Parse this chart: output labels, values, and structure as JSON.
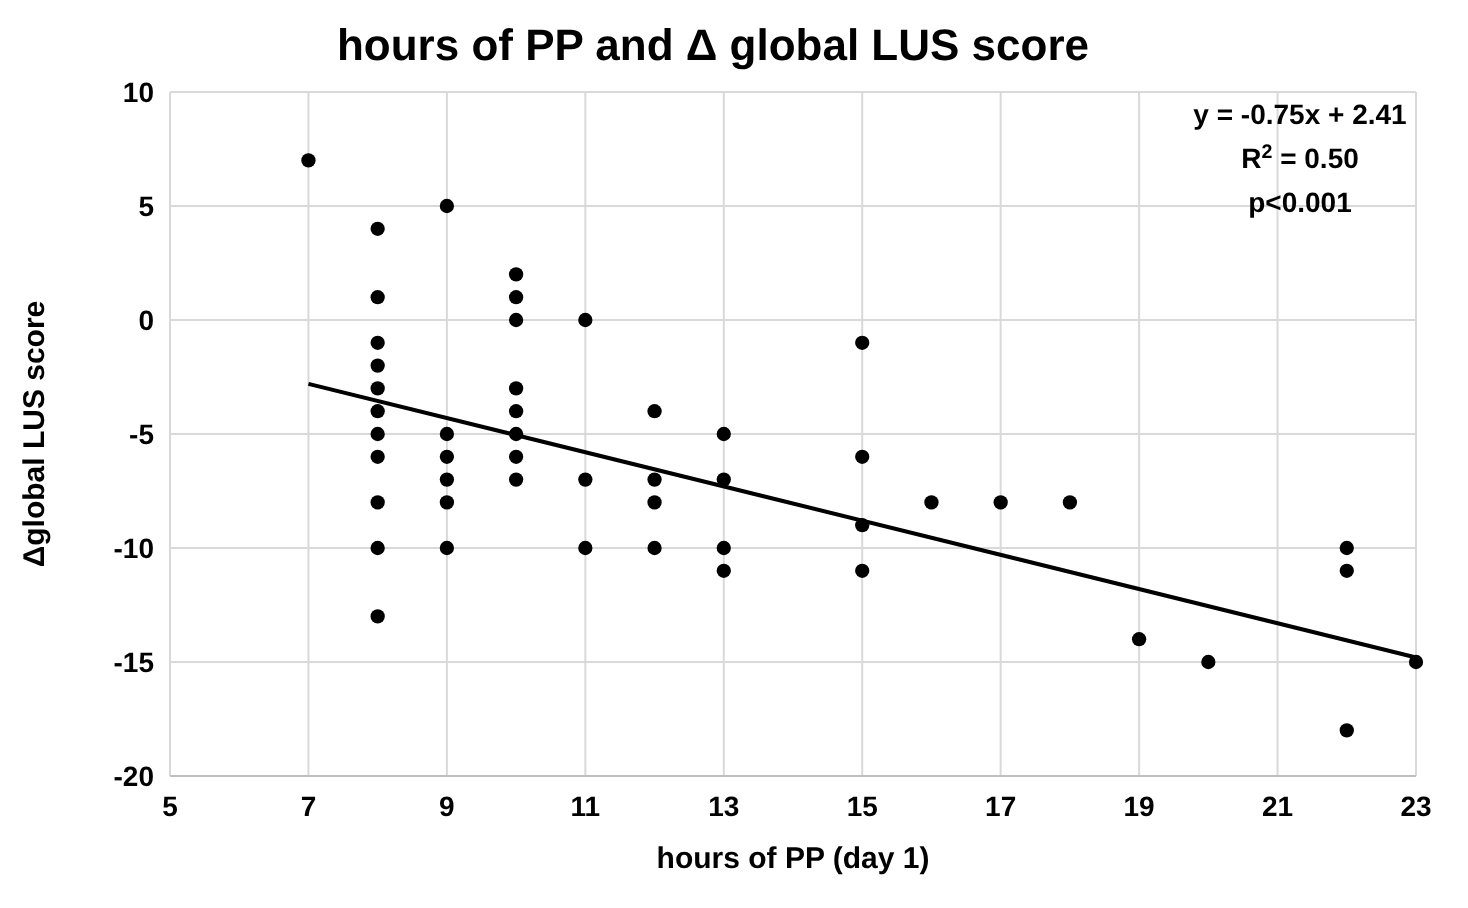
{
  "chart_data": {
    "type": "scatter",
    "title": "hours of PP and Δ global LUS score",
    "xlabel": "hours of PP (day 1)",
    "ylabel": "Δglobal LUS score",
    "xlim": [
      5,
      23
    ],
    "xticks": [
      5,
      7,
      9,
      11,
      13,
      15,
      17,
      19,
      21,
      23
    ],
    "ylim": [
      -20,
      10
    ],
    "yticks": [
      -20,
      -15,
      -10,
      -5,
      0,
      5,
      10
    ],
    "grid": true,
    "marker": "circle",
    "annotations": [
      "y = -0.75x + 2.41",
      "R$^{2}$ = 0.50",
      "p<0.001"
    ],
    "series": [
      {
        "type": "scatter",
        "color": "#000000",
        "x": [
          7,
          8,
          8,
          8,
          8,
          8,
          8,
          8,
          8,
          8,
          8,
          8,
          9,
          9,
          9,
          9,
          9,
          9,
          10,
          10,
          10,
          10,
          10,
          10,
          10,
          10,
          11,
          11,
          11,
          12,
          12,
          12,
          12,
          13,
          13,
          13,
          13,
          15,
          15,
          15,
          15,
          16,
          17,
          18,
          19,
          20,
          22,
          22,
          22,
          23
        ],
        "values": [
          7,
          4,
          1,
          -1,
          -2,
          -3,
          -4,
          -5,
          -6,
          -8,
          -10,
          -13,
          5,
          -5,
          -6,
          -7,
          -8,
          -10,
          2,
          1,
          0,
          -3,
          -4,
          -5,
          -6,
          -7,
          0,
          -7,
          -10,
          -4,
          -7,
          -8,
          -10,
          -5,
          -7,
          -10,
          -11,
          -1,
          -6,
          -9,
          -11,
          -8,
          -8,
          -8,
          -14,
          -15,
          -10,
          -11,
          -18,
          -15
        ]
      },
      {
        "type": "line",
        "color": "#000000",
        "x": [
          7,
          23
        ],
        "values": [
          -2.8,
          -14.8
        ],
        "marker": "none",
        "line_style": "solid"
      }
    ]
  }
}
